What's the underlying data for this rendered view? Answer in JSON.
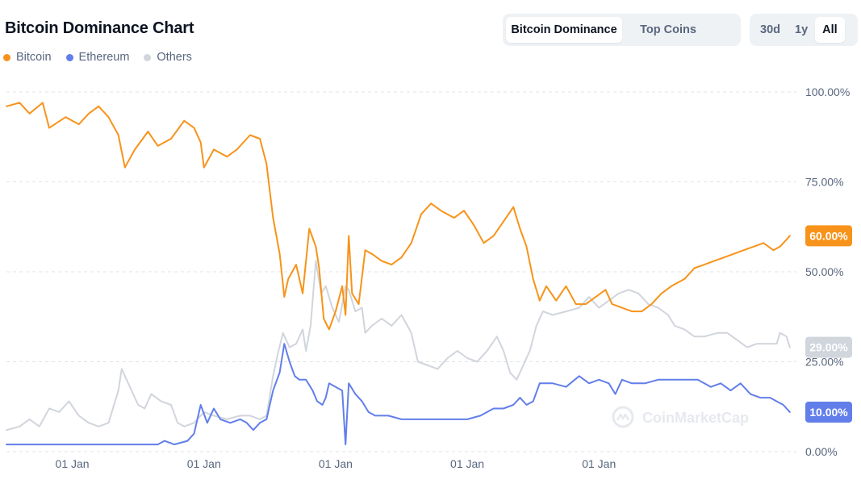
{
  "header": {
    "title": "Bitcoin Dominance Chart"
  },
  "tabs": [
    {
      "label": "Bitcoin Dominance",
      "active": true
    },
    {
      "label": "Top Coins",
      "active": false
    }
  ],
  "ranges": [
    {
      "label": "30d",
      "active": false
    },
    {
      "label": "1y",
      "active": false
    },
    {
      "label": "All",
      "active": true
    }
  ],
  "watermark": "CoinMarketCap",
  "colors": {
    "bitcoin": "#f7931a",
    "ethereum": "#627eea",
    "others": "#d1d5dc",
    "grid": "#dfe3e8",
    "axis_text": "#58667e"
  },
  "chart_data": {
    "type": "line",
    "title": "Bitcoin Dominance Chart",
    "ylim": [
      0,
      100
    ],
    "y_ticks": [
      "100.00%",
      "75.00%",
      "50.00%",
      "25.00%",
      "0.00%"
    ],
    "y_tick_values": [
      100,
      75,
      50,
      25,
      0
    ],
    "x_tick_labels": [
      "01 Jan",
      "01 Jan",
      "01 Jan",
      "01 Jan",
      "01 Jan"
    ],
    "x_tick_positions": [
      1,
      3,
      5,
      7,
      9
    ],
    "xlim": [
      0,
      12
    ],
    "grid": "horizontal dashed",
    "legend": "top-left",
    "series": [
      {
        "name": "Bitcoin",
        "color": "#f7931a",
        "last_label": "60.00%",
        "points": [
          [
            0,
            96
          ],
          [
            0.2,
            97
          ],
          [
            0.35,
            94
          ],
          [
            0.55,
            97
          ],
          [
            0.65,
            90
          ],
          [
            0.9,
            93
          ],
          [
            1.1,
            91
          ],
          [
            1.25,
            94
          ],
          [
            1.4,
            96
          ],
          [
            1.55,
            93
          ],
          [
            1.7,
            88
          ],
          [
            1.8,
            79
          ],
          [
            1.95,
            84
          ],
          [
            2.15,
            89
          ],
          [
            2.3,
            85
          ],
          [
            2.5,
            87
          ],
          [
            2.7,
            92
          ],
          [
            2.85,
            90
          ],
          [
            2.95,
            86
          ],
          [
            3.0,
            79
          ],
          [
            3.15,
            84
          ],
          [
            3.35,
            82
          ],
          [
            3.5,
            84
          ],
          [
            3.7,
            88
          ],
          [
            3.85,
            87
          ],
          [
            3.95,
            80
          ],
          [
            4.05,
            65
          ],
          [
            4.15,
            55
          ],
          [
            4.22,
            43
          ],
          [
            4.28,
            48
          ],
          [
            4.4,
            52
          ],
          [
            4.5,
            44
          ],
          [
            4.6,
            62
          ],
          [
            4.7,
            57
          ],
          [
            4.75,
            51
          ],
          [
            4.82,
            37
          ],
          [
            4.9,
            34
          ],
          [
            5.0,
            39
          ],
          [
            5.1,
            46
          ],
          [
            5.15,
            38
          ],
          [
            5.2,
            60
          ],
          [
            5.25,
            44
          ],
          [
            5.35,
            41
          ],
          [
            5.45,
            56
          ],
          [
            5.55,
            55
          ],
          [
            5.7,
            53
          ],
          [
            5.85,
            52
          ],
          [
            6.0,
            54
          ],
          [
            6.15,
            58
          ],
          [
            6.3,
            66
          ],
          [
            6.45,
            69
          ],
          [
            6.6,
            67
          ],
          [
            6.8,
            65
          ],
          [
            6.95,
            67
          ],
          [
            7.1,
            63
          ],
          [
            7.25,
            58
          ],
          [
            7.4,
            60
          ],
          [
            7.55,
            64
          ],
          [
            7.7,
            68
          ],
          [
            7.8,
            62
          ],
          [
            7.9,
            57
          ],
          [
            8.0,
            48
          ],
          [
            8.1,
            42
          ],
          [
            8.2,
            46
          ],
          [
            8.35,
            42
          ],
          [
            8.5,
            46
          ],
          [
            8.65,
            41
          ],
          [
            8.8,
            41
          ],
          [
            8.95,
            43
          ],
          [
            9.1,
            45
          ],
          [
            9.2,
            41
          ],
          [
            9.35,
            40
          ],
          [
            9.5,
            39
          ],
          [
            9.65,
            39
          ],
          [
            9.8,
            41
          ],
          [
            9.95,
            44
          ],
          [
            10.1,
            46
          ],
          [
            10.3,
            48
          ],
          [
            10.45,
            51
          ],
          [
            10.6,
            52
          ],
          [
            10.75,
            53
          ],
          [
            10.9,
            54
          ],
          [
            11.05,
            55
          ],
          [
            11.2,
            56
          ],
          [
            11.35,
            57
          ],
          [
            11.5,
            58
          ],
          [
            11.65,
            56
          ],
          [
            11.75,
            57
          ],
          [
            11.85,
            59
          ],
          [
            11.9,
            60
          ]
        ]
      },
      {
        "name": "Ethereum",
        "color": "#627eea",
        "last_label": "10.00%",
        "points": [
          [
            0,
            2
          ],
          [
            0.6,
            2
          ],
          [
            1.2,
            2
          ],
          [
            1.8,
            2
          ],
          [
            2.3,
            2
          ],
          [
            2.4,
            3
          ],
          [
            2.55,
            2
          ],
          [
            2.75,
            3
          ],
          [
            2.85,
            5
          ],
          [
            2.95,
            13
          ],
          [
            3.05,
            8
          ],
          [
            3.15,
            12
          ],
          [
            3.25,
            9
          ],
          [
            3.4,
            8
          ],
          [
            3.55,
            9
          ],
          [
            3.65,
            8
          ],
          [
            3.75,
            6
          ],
          [
            3.85,
            8
          ],
          [
            3.95,
            9
          ],
          [
            4.05,
            17
          ],
          [
            4.15,
            22
          ],
          [
            4.22,
            30
          ],
          [
            4.3,
            25
          ],
          [
            4.38,
            21
          ],
          [
            4.45,
            20
          ],
          [
            4.55,
            20
          ],
          [
            4.65,
            17
          ],
          [
            4.72,
            14
          ],
          [
            4.8,
            13
          ],
          [
            4.85,
            15
          ],
          [
            4.9,
            19
          ],
          [
            5.0,
            18
          ],
          [
            5.1,
            17
          ],
          [
            5.15,
            2
          ],
          [
            5.2,
            19
          ],
          [
            5.3,
            16
          ],
          [
            5.4,
            14
          ],
          [
            5.5,
            11
          ],
          [
            5.6,
            10
          ],
          [
            5.8,
            10
          ],
          [
            6.0,
            9
          ],
          [
            6.2,
            9
          ],
          [
            6.4,
            9
          ],
          [
            6.6,
            9
          ],
          [
            6.8,
            9
          ],
          [
            7.0,
            9
          ],
          [
            7.2,
            10
          ],
          [
            7.4,
            12
          ],
          [
            7.55,
            12
          ],
          [
            7.7,
            13
          ],
          [
            7.8,
            15
          ],
          [
            7.9,
            13
          ],
          [
            8.0,
            14
          ],
          [
            8.1,
            19
          ],
          [
            8.3,
            19
          ],
          [
            8.5,
            18
          ],
          [
            8.7,
            21
          ],
          [
            8.85,
            19
          ],
          [
            9.0,
            20
          ],
          [
            9.15,
            19
          ],
          [
            9.25,
            16
          ],
          [
            9.35,
            20
          ],
          [
            9.5,
            19
          ],
          [
            9.7,
            19
          ],
          [
            9.9,
            20
          ],
          [
            10.1,
            20
          ],
          [
            10.3,
            20
          ],
          [
            10.5,
            20
          ],
          [
            10.6,
            19
          ],
          [
            10.7,
            18
          ],
          [
            10.85,
            19
          ],
          [
            11.0,
            17
          ],
          [
            11.15,
            19
          ],
          [
            11.3,
            16
          ],
          [
            11.45,
            15
          ],
          [
            11.6,
            15
          ],
          [
            11.7,
            14
          ],
          [
            11.8,
            13
          ],
          [
            11.9,
            11
          ]
        ]
      },
      {
        "name": "Others",
        "color": "#d1d5dc",
        "last_label": "29.00%",
        "points": [
          [
            0,
            6
          ],
          [
            0.2,
            7
          ],
          [
            0.35,
            9
          ],
          [
            0.5,
            7
          ],
          [
            0.65,
            12
          ],
          [
            0.8,
            11
          ],
          [
            0.95,
            14
          ],
          [
            1.1,
            10
          ],
          [
            1.25,
            8
          ],
          [
            1.4,
            7
          ],
          [
            1.55,
            8
          ],
          [
            1.7,
            17
          ],
          [
            1.75,
            23
          ],
          [
            1.85,
            19
          ],
          [
            2.0,
            13
          ],
          [
            2.1,
            12
          ],
          [
            2.2,
            16
          ],
          [
            2.35,
            14
          ],
          [
            2.5,
            13
          ],
          [
            2.6,
            8
          ],
          [
            2.7,
            7
          ],
          [
            2.85,
            8
          ],
          [
            3.0,
            11
          ],
          [
            3.15,
            10
          ],
          [
            3.35,
            9
          ],
          [
            3.55,
            10
          ],
          [
            3.7,
            10
          ],
          [
            3.85,
            9
          ],
          [
            3.95,
            10
          ],
          [
            4.05,
            21
          ],
          [
            4.12,
            27
          ],
          [
            4.2,
            33
          ],
          [
            4.3,
            29
          ],
          [
            4.4,
            30
          ],
          [
            4.5,
            34
          ],
          [
            4.55,
            28
          ],
          [
            4.62,
            35
          ],
          [
            4.7,
            53
          ],
          [
            4.78,
            44
          ],
          [
            4.85,
            46
          ],
          [
            4.95,
            40
          ],
          [
            5.05,
            36
          ],
          [
            5.15,
            46
          ],
          [
            5.2,
            45
          ],
          [
            5.3,
            39
          ],
          [
            5.4,
            40
          ],
          [
            5.45,
            33
          ],
          [
            5.55,
            35
          ],
          [
            5.7,
            37
          ],
          [
            5.85,
            35
          ],
          [
            6.0,
            38
          ],
          [
            6.15,
            33
          ],
          [
            6.25,
            25
          ],
          [
            6.4,
            24
          ],
          [
            6.55,
            23
          ],
          [
            6.7,
            26
          ],
          [
            6.85,
            28
          ],
          [
            7.0,
            26
          ],
          [
            7.15,
            25
          ],
          [
            7.3,
            28
          ],
          [
            7.45,
            32
          ],
          [
            7.55,
            28
          ],
          [
            7.65,
            22
          ],
          [
            7.75,
            20
          ],
          [
            7.85,
            24
          ],
          [
            7.95,
            28
          ],
          [
            8.05,
            35
          ],
          [
            8.15,
            39
          ],
          [
            8.3,
            38
          ],
          [
            8.5,
            39
          ],
          [
            8.7,
            40
          ],
          [
            8.85,
            43
          ],
          [
            9.0,
            40
          ],
          [
            9.15,
            42
          ],
          [
            9.3,
            44
          ],
          [
            9.45,
            45
          ],
          [
            9.6,
            44
          ],
          [
            9.75,
            41
          ],
          [
            9.9,
            40
          ],
          [
            10.05,
            38
          ],
          [
            10.15,
            35
          ],
          [
            10.3,
            34
          ],
          [
            10.45,
            32
          ],
          [
            10.6,
            32
          ],
          [
            10.8,
            33
          ],
          [
            10.95,
            33
          ],
          [
            11.1,
            31
          ],
          [
            11.25,
            29
          ],
          [
            11.4,
            30
          ],
          [
            11.55,
            30
          ],
          [
            11.7,
            30
          ],
          [
            11.75,
            33
          ],
          [
            11.85,
            32
          ],
          [
            11.9,
            29
          ]
        ]
      }
    ]
  }
}
